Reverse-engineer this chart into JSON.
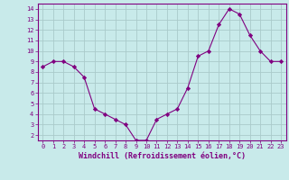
{
  "x": [
    0,
    1,
    2,
    3,
    4,
    5,
    6,
    7,
    8,
    9,
    10,
    11,
    12,
    13,
    14,
    15,
    16,
    17,
    18,
    19,
    20,
    21,
    22,
    23
  ],
  "y": [
    8.5,
    9.0,
    9.0,
    8.5,
    7.5,
    4.5,
    4.0,
    3.5,
    3.0,
    1.5,
    1.5,
    3.5,
    4.0,
    4.5,
    6.5,
    9.5,
    10.0,
    12.5,
    14.0,
    13.5,
    11.5,
    10.0,
    9.0,
    9.0
  ],
  "line_color": "#800080",
  "marker": "D",
  "marker_size": 2.2,
  "bg_color": "#c8eaea",
  "grid_color": "#aacaca",
  "xlabel": "Windchill (Refroidissement éolien,°C)",
  "ylim": [
    1.5,
    14.5
  ],
  "xlim": [
    -0.5,
    23.5
  ],
  "yticks": [
    2,
    3,
    4,
    5,
    6,
    7,
    8,
    9,
    10,
    11,
    12,
    13,
    14
  ],
  "xticks": [
    0,
    1,
    2,
    3,
    4,
    5,
    6,
    7,
    8,
    9,
    10,
    11,
    12,
    13,
    14,
    15,
    16,
    17,
    18,
    19,
    20,
    21,
    22,
    23
  ],
  "tick_color": "#800080",
  "xlabel_color": "#800080",
  "tick_fontsize": 5.0,
  "xlabel_fontsize": 6.0
}
